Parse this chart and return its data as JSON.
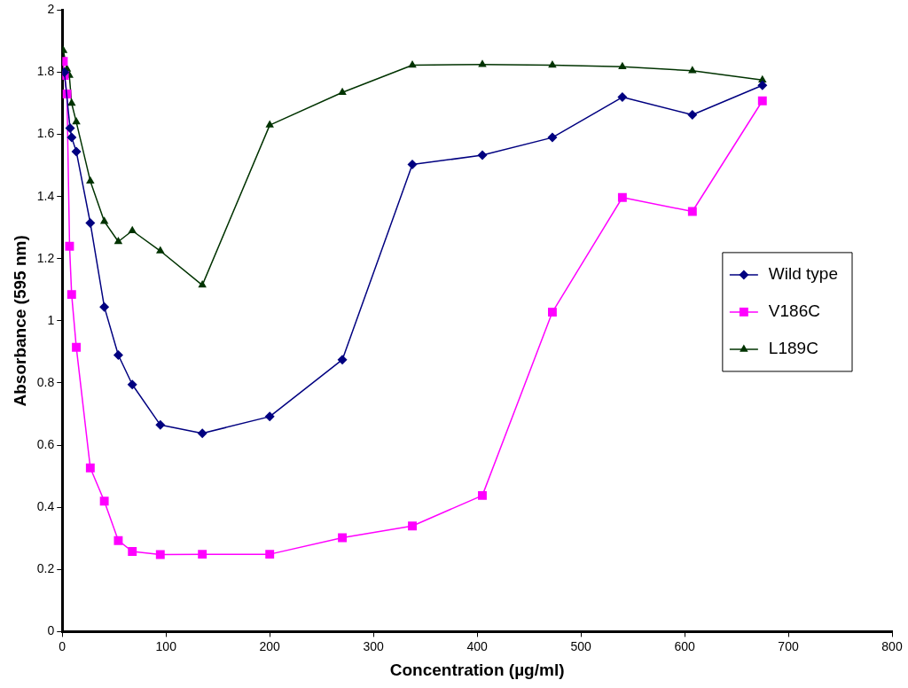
{
  "chart_data": {
    "type": "line",
    "xlabel": "Concentration (µg/ml)",
    "ylabel": "Absorbance (595 nm)",
    "xlim": [
      0,
      800
    ],
    "xticks": [
      0,
      100,
      200,
      300,
      400,
      500,
      600,
      700,
      800
    ],
    "ylim": [
      0,
      2
    ],
    "yticks": [
      0,
      0.2,
      0.4,
      0.6,
      0.8,
      1,
      1.2,
      1.4,
      1.6,
      1.8,
      2
    ],
    "grid": false,
    "legend": "right",
    "line_style": "solid",
    "series": [
      {
        "name": "Wild type",
        "color": "#000080",
        "marker": "diamond",
        "x": [
          2,
          7.5,
          9,
          13.5,
          27,
          40.5,
          54,
          67.5,
          94.5,
          135,
          200,
          270,
          337.5,
          405,
          472.5,
          540,
          607.5,
          675
        ],
        "values": [
          1.8,
          1.62,
          1.59,
          1.545,
          1.315,
          1.045,
          0.89,
          0.795,
          0.665,
          0.638,
          0.692,
          0.875,
          1.503,
          1.533,
          1.59,
          1.72,
          1.663,
          1.758
        ]
      },
      {
        "name": "V186C",
        "color": "#ff00ff",
        "marker": "square",
        "x": [
          1,
          2,
          4.5,
          7,
          9,
          13.5,
          27,
          40.5,
          54,
          67.5,
          94.5,
          135,
          200,
          270,
          337.5,
          405,
          472.5,
          540,
          607.5,
          675
        ],
        "values": [
          1.835,
          1.79,
          1.73,
          1.24,
          1.085,
          0.915,
          0.527,
          0.42,
          0.293,
          0.258,
          0.248,
          0.249,
          0.249,
          0.302,
          0.34,
          0.438,
          1.028,
          1.397,
          1.352,
          1.708
        ]
      },
      {
        "name": "L189C",
        "color": "#003300",
        "marker": "triangle",
        "x": [
          1,
          4.5,
          6.75,
          9,
          13.5,
          27,
          40.5,
          54,
          67.5,
          94.5,
          135,
          200,
          270,
          337.5,
          405,
          472.5,
          540,
          607.5,
          675
        ],
        "values": [
          1.87,
          1.81,
          1.79,
          1.7,
          1.64,
          1.45,
          1.32,
          1.255,
          1.29,
          1.225,
          1.115,
          1.63,
          1.735,
          1.823,
          1.825,
          1.823,
          1.818,
          1.805,
          1.775
        ]
      }
    ]
  }
}
